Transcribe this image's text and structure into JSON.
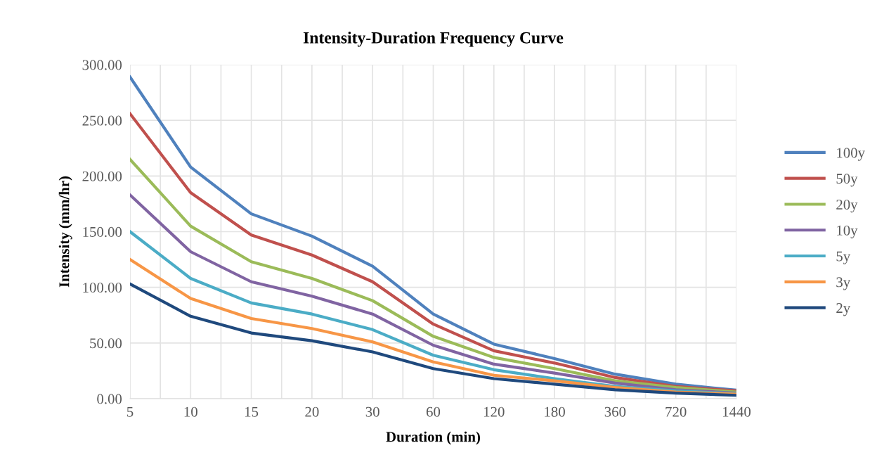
{
  "chart_data": {
    "type": "line",
    "title": "Intensity-Duration Frequency Curve",
    "xlabel": "Duration (min)",
    "ylabel": "Intensity (mm/hr)",
    "categories": [
      "5",
      "10",
      "15",
      "20",
      "30",
      "60",
      "120",
      "180",
      "360",
      "720",
      "1440"
    ],
    "series": [
      {
        "name": "100y",
        "color": "#4f81bd",
        "values": [
          289,
          208,
          166,
          146,
          119,
          76,
          49,
          36,
          22,
          13,
          7.6
        ]
      },
      {
        "name": "50y",
        "color": "#c0504d",
        "values": [
          256,
          185,
          147,
          129,
          105,
          67,
          43,
          32,
          19,
          11,
          7
        ]
      },
      {
        "name": "20y",
        "color": "#9bbb59",
        "values": [
          215,
          155,
          123,
          108,
          88,
          56,
          37,
          27,
          16,
          10,
          6
        ]
      },
      {
        "name": "10y",
        "color": "#8064a2",
        "values": [
          183,
          132,
          105,
          92,
          76,
          48,
          31,
          23,
          14,
          8,
          5
        ]
      },
      {
        "name": "5y",
        "color": "#4bacc6",
        "values": [
          150,
          108,
          86,
          76,
          62,
          39,
          26,
          18,
          11,
          7,
          4.5
        ]
      },
      {
        "name": "3y",
        "color": "#f79646",
        "values": [
          125,
          90,
          72,
          63,
          51,
          33,
          21,
          16,
          10,
          6,
          4
        ]
      },
      {
        "name": "2y",
        "color": "#1f497d",
        "values": [
          103,
          74,
          59,
          52,
          42,
          27,
          18,
          13,
          8,
          5,
          3
        ]
      }
    ],
    "ylim": [
      0,
      300
    ],
    "yticks": [
      {
        "value": 0,
        "label": "0.00"
      },
      {
        "value": 50,
        "label": "50.00"
      },
      {
        "value": 100,
        "label": "100.00"
      },
      {
        "value": 150,
        "label": "150.00"
      },
      {
        "value": 200,
        "label": "200.00"
      },
      {
        "value": 250,
        "label": "250.00"
      },
      {
        "value": 300,
        "label": "300.00"
      }
    ],
    "grid": true,
    "legend": "right",
    "marker": "none",
    "line_style": "solid"
  }
}
